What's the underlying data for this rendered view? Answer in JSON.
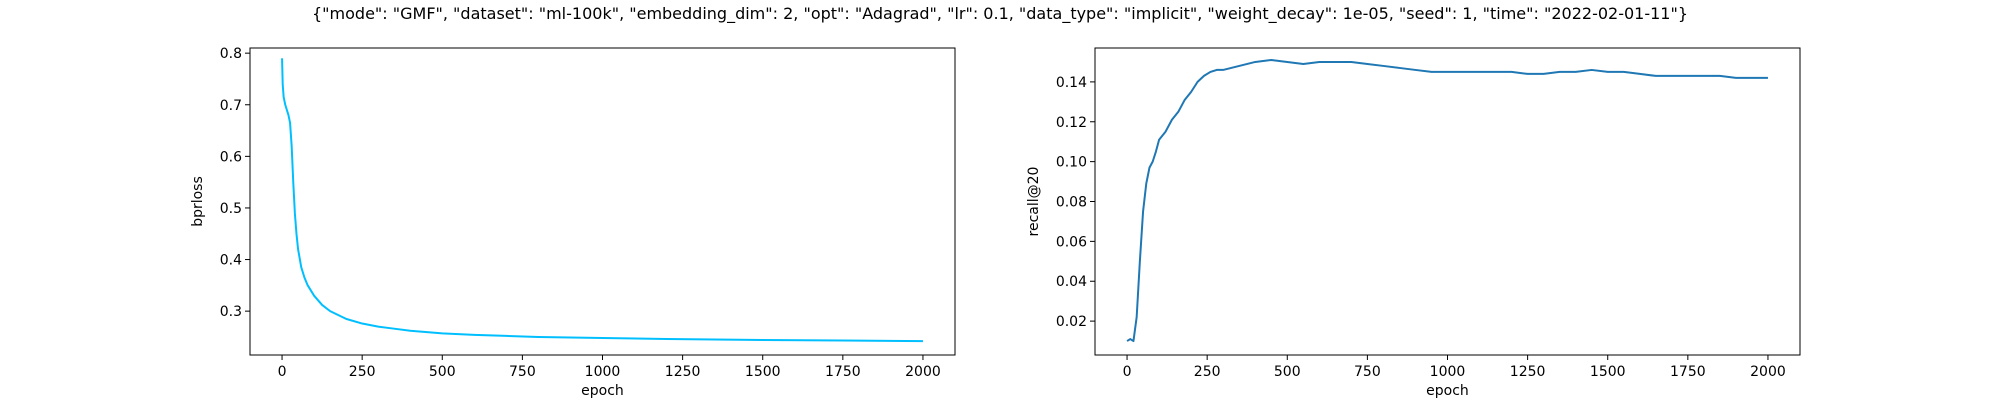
{
  "suptitle": "{\"mode\": \"GMF\", \"dataset\": \"ml-100k\", \"embedding_dim\": 2, \"opt\": \"Adagrad\", \"lr\": 0.1, \"data_type\": \"implicit\", \"weight_decay\": 1e-05, \"seed\": 1, \"time\": \"2022-02-01-11\"}",
  "chart_data": [
    {
      "type": "line",
      "xlabel": "epoch",
      "ylabel": "bprloss",
      "xlim": [
        -100,
        2100
      ],
      "ylim": [
        0.215,
        0.81
      ],
      "xticks": [
        0,
        250,
        500,
        750,
        1000,
        1250,
        1500,
        1750,
        2000
      ],
      "yticks": [
        0.3,
        0.4,
        0.5,
        0.6,
        0.7,
        0.8
      ],
      "color": "#00bfff",
      "series": [
        {
          "x": [
            0,
            2,
            5,
            10,
            15,
            20,
            25,
            30,
            35,
            40,
            45,
            50,
            60,
            70,
            80,
            100,
            125,
            150,
            200,
            250,
            300,
            350,
            400,
            500,
            600,
            700,
            800,
            1000,
            1200,
            1500,
            1750,
            2000
          ],
          "values": [
            0.79,
            0.74,
            0.715,
            0.7,
            0.69,
            0.68,
            0.665,
            0.62,
            0.55,
            0.49,
            0.45,
            0.42,
            0.385,
            0.365,
            0.35,
            0.33,
            0.312,
            0.3,
            0.285,
            0.276,
            0.27,
            0.266,
            0.262,
            0.257,
            0.254,
            0.252,
            0.25,
            0.248,
            0.246,
            0.244,
            0.243,
            0.242
          ]
        }
      ]
    },
    {
      "type": "line",
      "xlabel": "epoch",
      "ylabel": "recall@20",
      "xlim": [
        -100,
        2100
      ],
      "ylim": [
        0.003,
        0.157
      ],
      "xticks": [
        0,
        250,
        500,
        750,
        1000,
        1250,
        1500,
        1750,
        2000
      ],
      "yticks": [
        0.02,
        0.04,
        0.06,
        0.08,
        0.1,
        0.12,
        0.14
      ],
      "color": "#1f77b4",
      "series": [
        {
          "x": [
            0,
            10,
            20,
            30,
            40,
            50,
            60,
            70,
            80,
            90,
            100,
            120,
            140,
            160,
            180,
            200,
            220,
            240,
            260,
            280,
            300,
            350,
            400,
            450,
            500,
            550,
            600,
            650,
            700,
            750,
            800,
            850,
            900,
            950,
            1000,
            1050,
            1100,
            1150,
            1200,
            1250,
            1300,
            1350,
            1400,
            1450,
            1500,
            1550,
            1600,
            1650,
            1700,
            1750,
            1800,
            1850,
            1900,
            1950,
            2000
          ],
          "values": [
            0.01,
            0.011,
            0.01,
            0.022,
            0.05,
            0.075,
            0.089,
            0.097,
            0.1,
            0.105,
            0.111,
            0.115,
            0.121,
            0.125,
            0.131,
            0.135,
            0.14,
            0.143,
            0.145,
            0.146,
            0.146,
            0.148,
            0.15,
            0.151,
            0.15,
            0.149,
            0.15,
            0.15,
            0.15,
            0.149,
            0.148,
            0.147,
            0.146,
            0.145,
            0.145,
            0.145,
            0.145,
            0.145,
            0.145,
            0.144,
            0.144,
            0.145,
            0.145,
            0.146,
            0.145,
            0.145,
            0.144,
            0.143,
            0.143,
            0.143,
            0.143,
            0.143,
            0.142,
            0.142,
            0.142
          ]
        }
      ]
    }
  ]
}
